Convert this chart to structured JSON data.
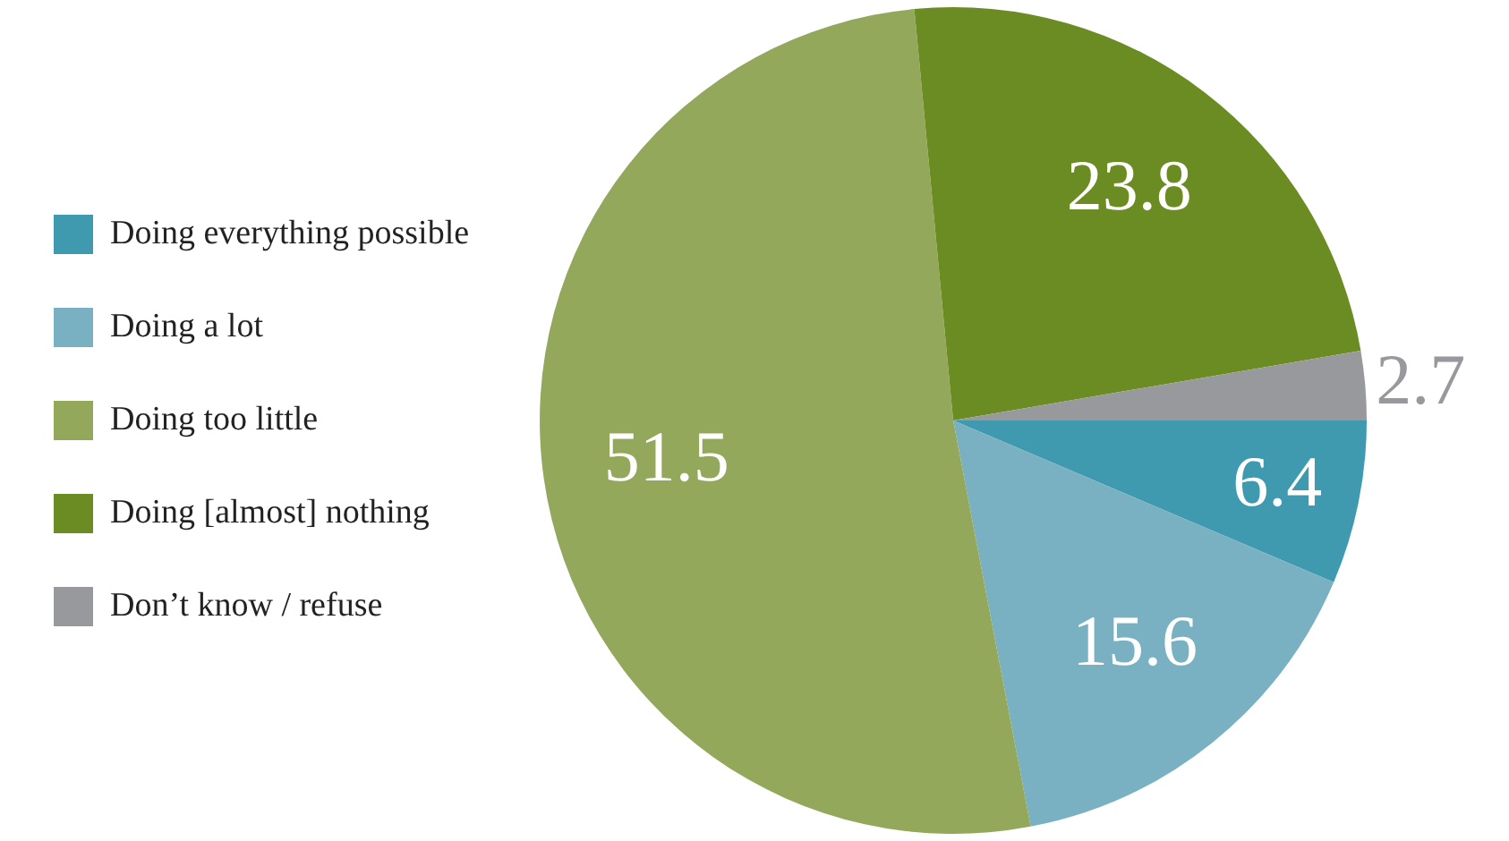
{
  "chart_data": {
    "type": "pie",
    "categories": [
      "Doing everything possible",
      "Doing a lot",
      "Doing too little",
      "Doing [almost] nothing",
      "Don’t know / refuse"
    ],
    "values": [
      6.4,
      15.6,
      51.5,
      23.8,
      2.7
    ],
    "colors": [
      "#3f9ab0",
      "#7ab1c2",
      "#93a85a",
      "#6b8c23",
      "#98999d"
    ],
    "data_labels": true,
    "legend": "left"
  }
}
